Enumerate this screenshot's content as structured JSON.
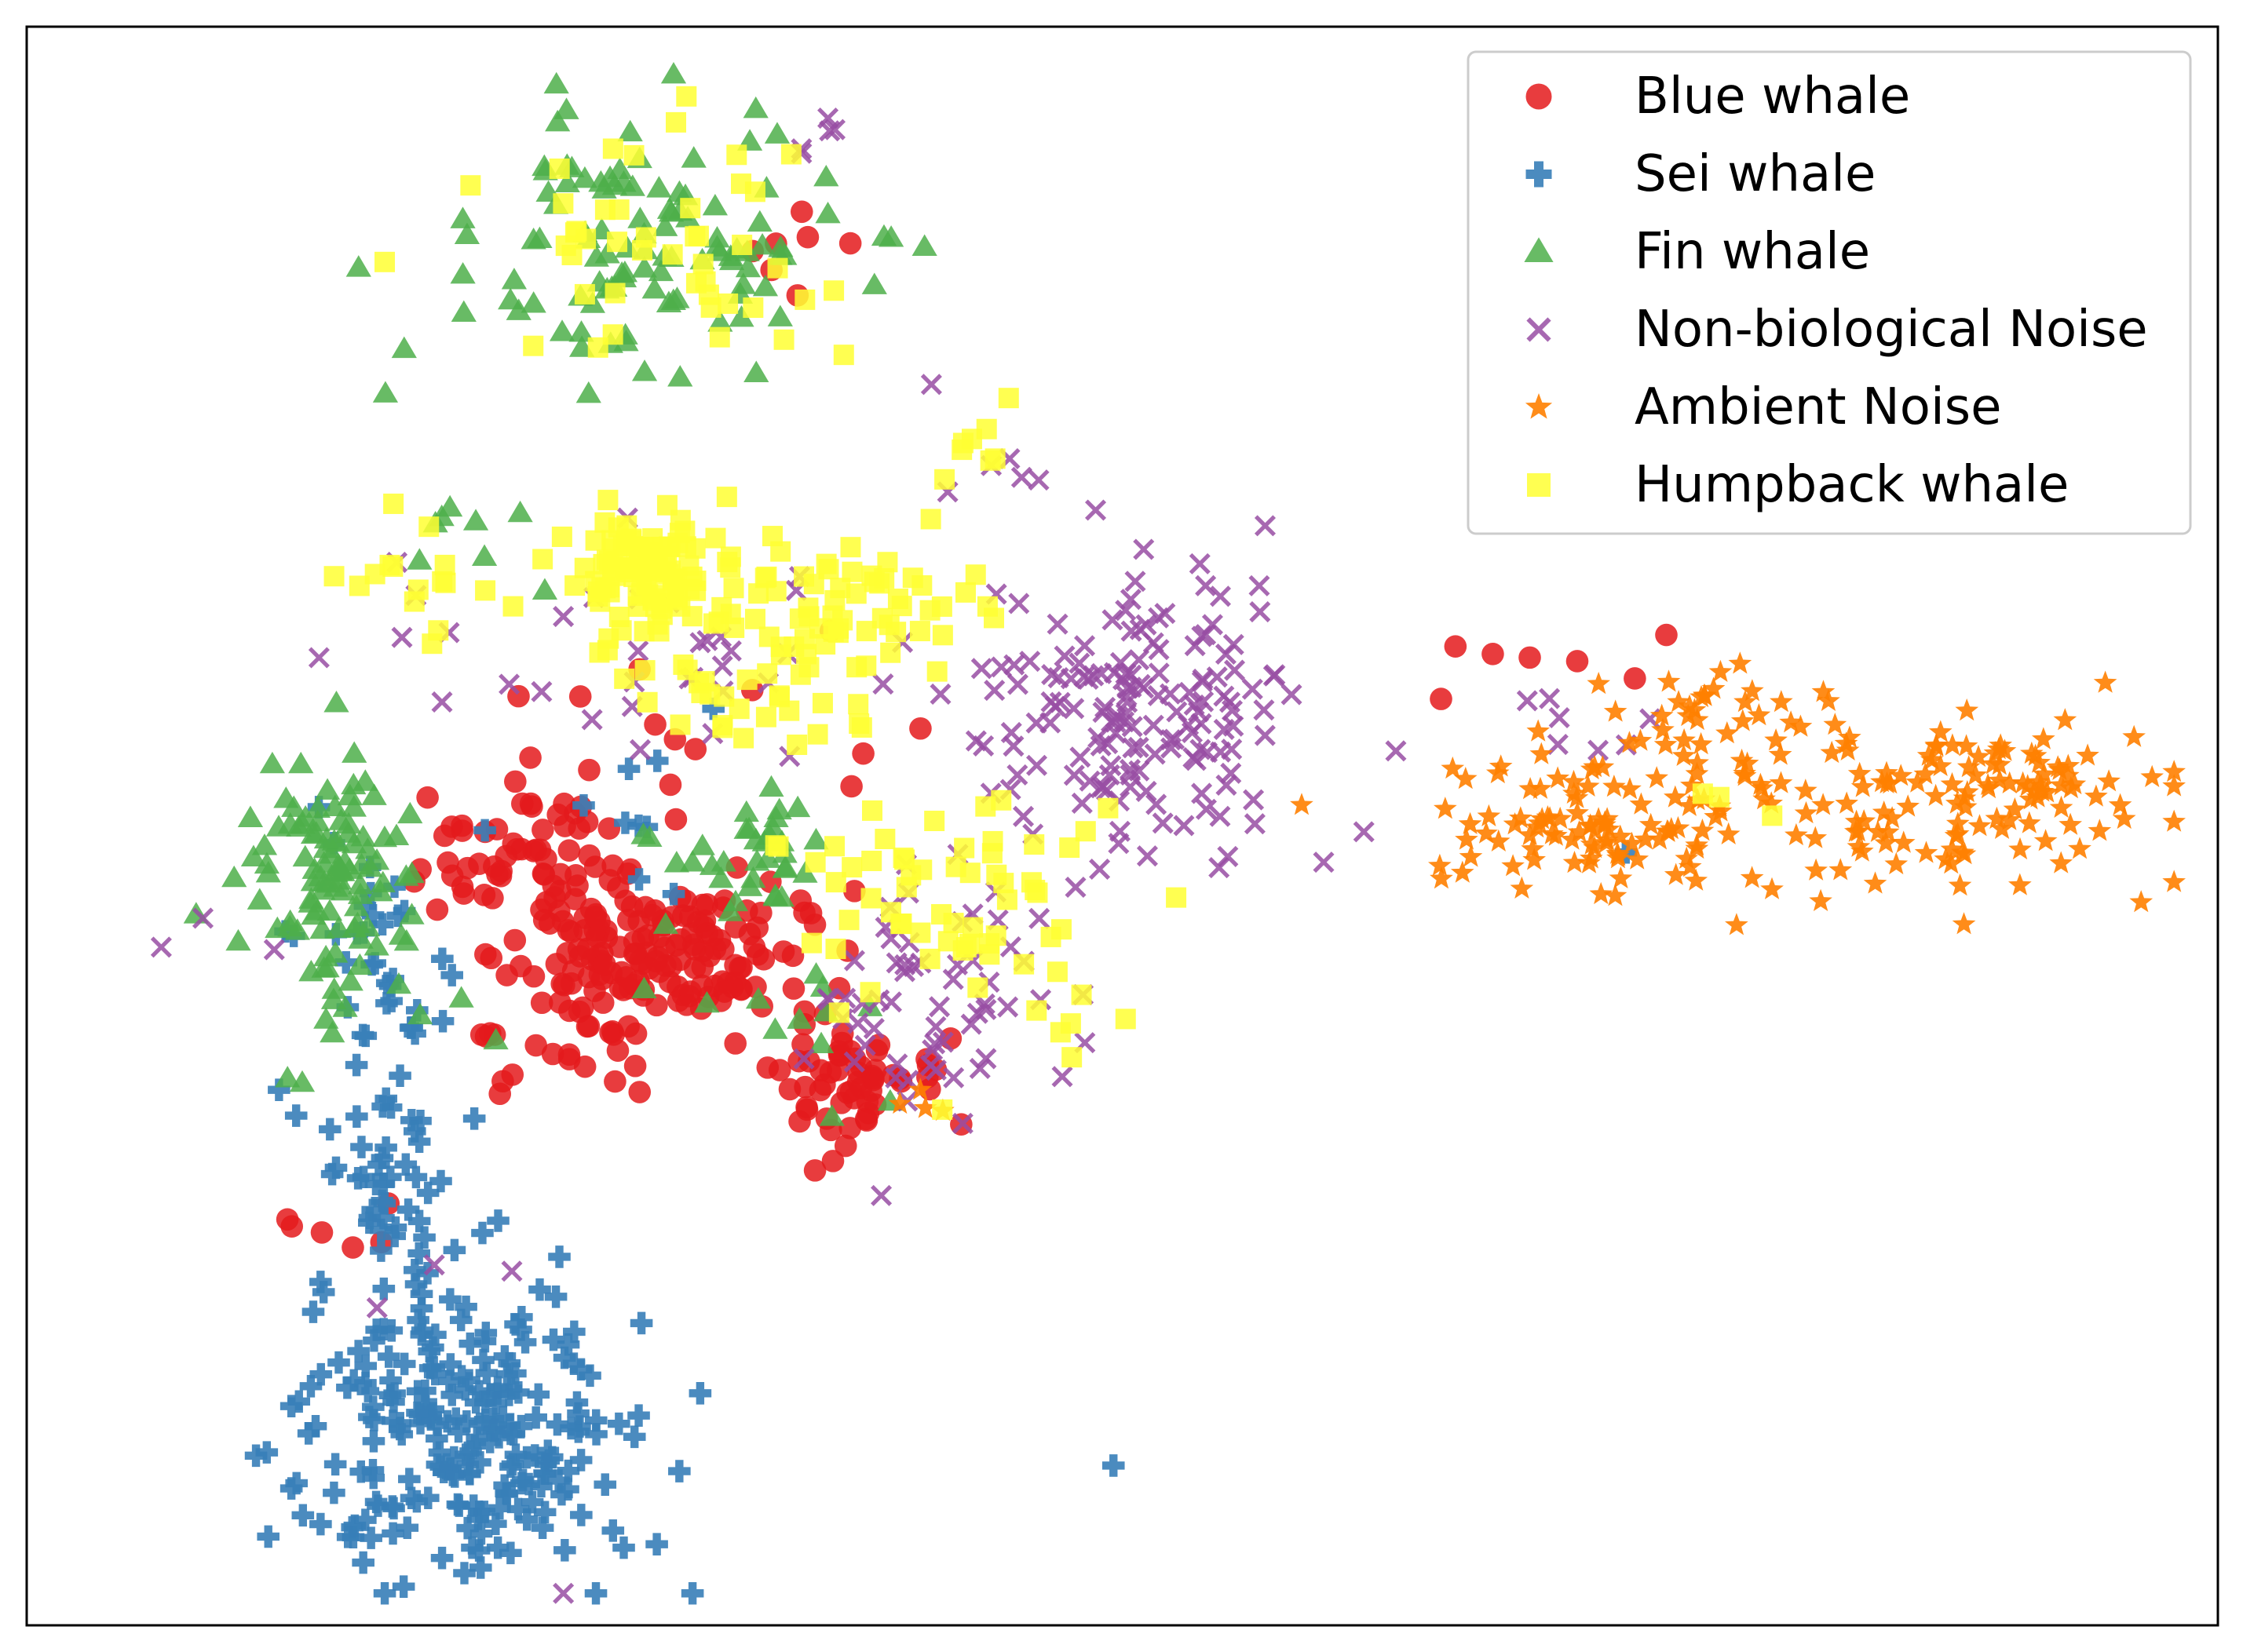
{
  "chart_data": {
    "type": "scatter",
    "title": "",
    "xlabel": "",
    "ylabel": "",
    "xlim": [
      0,
      100
    ],
    "ylim": [
      0,
      100
    ],
    "axis_ticks": false,
    "grid": false,
    "legend_position": "top-right",
    "series": [
      {
        "name": "Blue whale",
        "color": "#e41a1c",
        "marker": "circle",
        "clusters": [
          {
            "cx": 28.5,
            "cy": 42.0,
            "sx": 3.2,
            "sy": 2.2,
            "n": 170,
            "seed": 11
          },
          {
            "cx": 22.5,
            "cy": 48.5,
            "sx": 2.2,
            "sy": 1.8,
            "n": 50,
            "seed": 12
          },
          {
            "cx": 37.0,
            "cy": 34.0,
            "sx": 2.2,
            "sy": 2.0,
            "n": 60,
            "seed": 13
          },
          {
            "cx": 25.0,
            "cy": 35.5,
            "sx": 2.5,
            "sy": 1.5,
            "n": 20,
            "seed": 14
          },
          {
            "cx": 28.5,
            "cy": 55.0,
            "sx": 6.0,
            "sy": 6.0,
            "n": 18,
            "seed": 15
          },
          {
            "cx": 14.0,
            "cy": 24.5,
            "sx": 1.5,
            "sy": 1.5,
            "n": 6,
            "seed": 16
          },
          {
            "cx": 35.0,
            "cy": 87.0,
            "sx": 1.2,
            "sy": 2.5,
            "n": 7,
            "seed": 17
          },
          {
            "cx": 74.0,
            "cy": 60.0,
            "sx": 5.0,
            "sy": 1.5,
            "n": 7,
            "seed": 18
          }
        ]
      },
      {
        "name": "Sei whale",
        "color": "#377eb8",
        "marker": "plus",
        "clusters": [
          {
            "cx": 20.0,
            "cy": 12.0,
            "sx": 4.2,
            "sy": 5.0,
            "n": 230,
            "seed": 21
          },
          {
            "cx": 16.5,
            "cy": 30.0,
            "sx": 1.6,
            "sy": 5.0,
            "n": 60,
            "seed": 22
          },
          {
            "cx": 15.0,
            "cy": 43.0,
            "sx": 2.0,
            "sy": 4.0,
            "n": 25,
            "seed": 23
          },
          {
            "cx": 27.0,
            "cy": 52.0,
            "sx": 3.0,
            "sy": 4.0,
            "n": 10,
            "seed": 24
          },
          {
            "cx": 49.5,
            "cy": 10.0,
            "sx": 0.2,
            "sy": 0.2,
            "n": 1,
            "seed": 25
          },
          {
            "cx": 73.0,
            "cy": 48.0,
            "sx": 0.5,
            "sy": 0.3,
            "n": 1,
            "seed": 26
          }
        ]
      },
      {
        "name": "Fin whale",
        "color": "#4daf4a",
        "marker": "triangle",
        "clusters": [
          {
            "cx": 28.0,
            "cy": 86.5,
            "sx": 4.5,
            "sy": 4.0,
            "n": 110,
            "seed": 31
          },
          {
            "cx": 14.0,
            "cy": 47.0,
            "sx": 2.0,
            "sy": 4.5,
            "n": 110,
            "seed": 32
          },
          {
            "cx": 33.0,
            "cy": 48.0,
            "sx": 2.2,
            "sy": 1.8,
            "n": 35,
            "seed": 33
          },
          {
            "cx": 20.0,
            "cy": 69.0,
            "sx": 2.0,
            "sy": 1.5,
            "n": 8,
            "seed": 34
          },
          {
            "cx": 36.0,
            "cy": 38.0,
            "sx": 2.5,
            "sy": 3.0,
            "n": 12,
            "seed": 35
          }
        ]
      },
      {
        "name": "Non-biological Noise",
        "color": "#984ea3",
        "marker": "x",
        "clusters": [
          {
            "cx": 51.0,
            "cy": 57.0,
            "sx": 3.5,
            "sy": 5.0,
            "n": 160,
            "seed": 41
          },
          {
            "cx": 41.0,
            "cy": 40.0,
            "sx": 3.0,
            "sy": 4.0,
            "n": 60,
            "seed": 42
          },
          {
            "cx": 28.0,
            "cy": 60.0,
            "sx": 7.0,
            "sy": 4.0,
            "n": 35,
            "seed": 43
          },
          {
            "cx": 36.5,
            "cy": 93.0,
            "sx": 1.2,
            "sy": 0.8,
            "n": 5,
            "seed": 44
          },
          {
            "cx": 8.0,
            "cy": 43.0,
            "sx": 1.5,
            "sy": 1.5,
            "n": 3,
            "seed": 45
          },
          {
            "cx": 70.0,
            "cy": 56.0,
            "sx": 2.0,
            "sy": 2.0,
            "n": 7,
            "seed": 46
          },
          {
            "cx": 45.0,
            "cy": 74.0,
            "sx": 1.5,
            "sy": 2.0,
            "n": 5,
            "seed": 47
          },
          {
            "cx": 22.0,
            "cy": 12.0,
            "sx": 6.0,
            "sy": 7.0,
            "n": 4,
            "seed": 48
          }
        ]
      },
      {
        "name": "Ambient Noise",
        "color": "#ff7f00",
        "marker": "star",
        "clusters": [
          {
            "cx": 80.0,
            "cy": 51.0,
            "sx": 8.0,
            "sy": 3.0,
            "n": 150,
            "seed": 51
          },
          {
            "cx": 72.0,
            "cy": 50.0,
            "sx": 3.0,
            "sy": 2.0,
            "n": 50,
            "seed": 52
          },
          {
            "cx": 90.5,
            "cy": 52.0,
            "sx": 2.5,
            "sy": 2.0,
            "n": 45,
            "seed": 53
          },
          {
            "cx": 78.0,
            "cy": 57.5,
            "sx": 4.0,
            "sy": 1.0,
            "n": 25,
            "seed": 54
          },
          {
            "cx": 39.0,
            "cy": 33.5,
            "sx": 2.0,
            "sy": 1.5,
            "n": 4,
            "seed": 55
          }
        ]
      },
      {
        "name": "Humpback whale",
        "color": "#ffff33",
        "marker": "square",
        "clusters": [
          {
            "cx": 28.0,
            "cy": 66.0,
            "sx": 2.2,
            "sy": 2.0,
            "n": 110,
            "seed": 61
          },
          {
            "cx": 37.0,
            "cy": 64.0,
            "sx": 3.5,
            "sy": 2.5,
            "n": 60,
            "seed": 62
          },
          {
            "cx": 29.0,
            "cy": 86.0,
            "sx": 4.0,
            "sy": 4.0,
            "n": 45,
            "seed": 63
          },
          {
            "cx": 42.0,
            "cy": 45.0,
            "sx": 4.0,
            "sy": 3.5,
            "n": 60,
            "seed": 64
          },
          {
            "cx": 33.0,
            "cy": 58.0,
            "sx": 3.0,
            "sy": 2.0,
            "n": 30,
            "seed": 65
          },
          {
            "cx": 17.0,
            "cy": 65.0,
            "sx": 2.0,
            "sy": 1.5,
            "n": 15,
            "seed": 66
          },
          {
            "cx": 43.0,
            "cy": 76.0,
            "sx": 1.5,
            "sy": 2.0,
            "n": 8,
            "seed": 67
          },
          {
            "cx": 48.5,
            "cy": 36.5,
            "sx": 1.2,
            "sy": 1.5,
            "n": 6,
            "seed": 68
          },
          {
            "cx": 78.0,
            "cy": 51.0,
            "sx": 3.0,
            "sy": 2.5,
            "n": 3,
            "seed": 69
          }
        ]
      }
    ]
  }
}
